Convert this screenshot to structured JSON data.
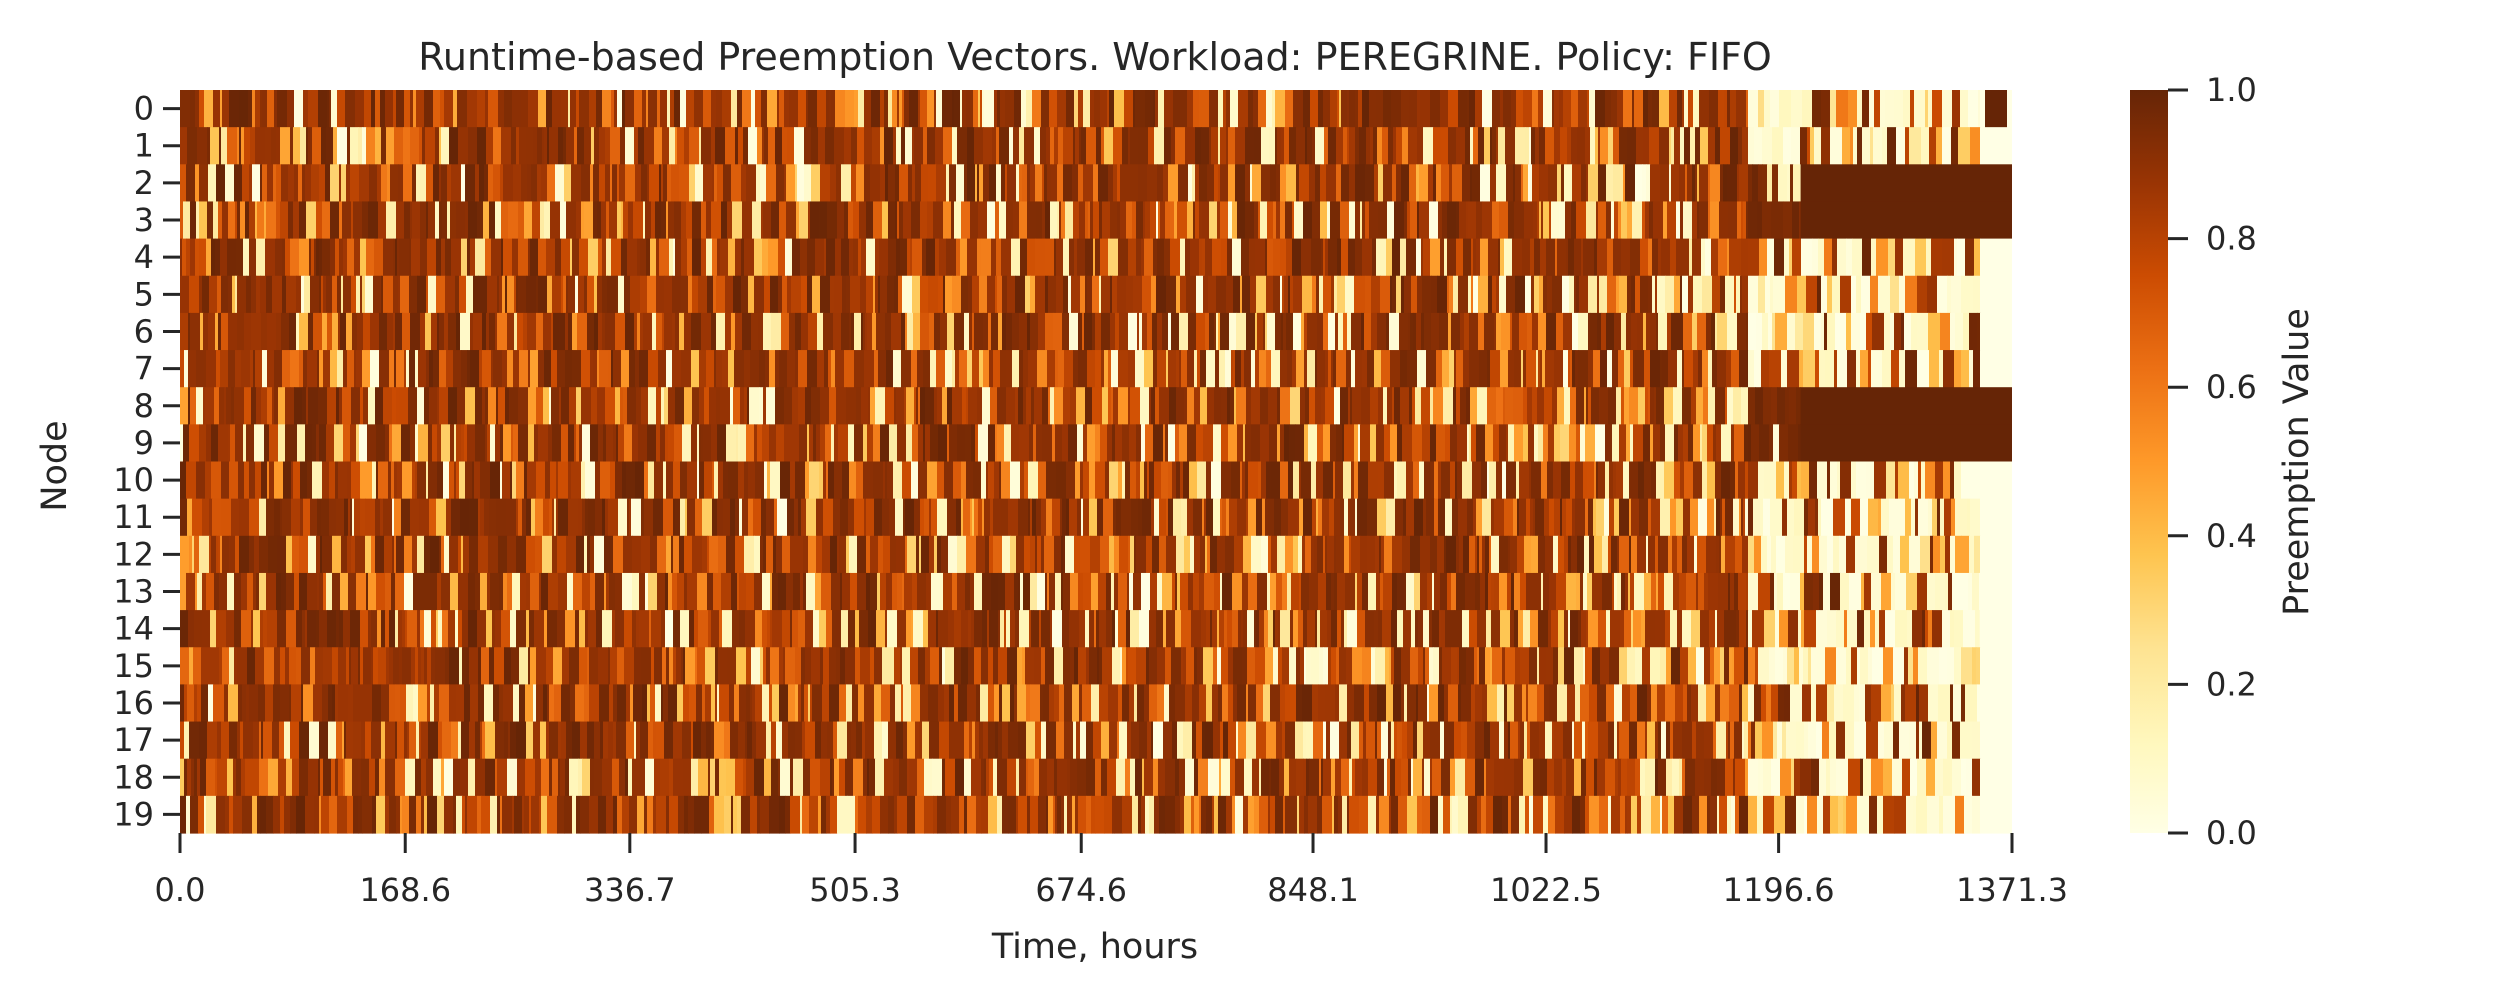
{
  "chart_data": {
    "type": "heatmap",
    "title": "Runtime-based Preemption Vectors. Workload: PEREGRINE. Policy: FIFO",
    "xlabel": "Time, hours",
    "ylabel": "Node",
    "x_tick_labels": [
      "0.0",
      "168.6",
      "336.7",
      "505.3",
      "674.6",
      "848.1",
      "1022.5",
      "1196.6",
      "1371.3"
    ],
    "xlim": [
      0.0,
      1371.3
    ],
    "y_tick_labels": [
      "0",
      "1",
      "2",
      "3",
      "4",
      "5",
      "6",
      "7",
      "8",
      "9",
      "10",
      "11",
      "12",
      "13",
      "14",
      "15",
      "16",
      "17",
      "18",
      "19"
    ],
    "colorbar": {
      "label": "Preemption Value",
      "range": [
        0.0,
        1.0
      ],
      "tick_labels": [
        "0.0",
        "0.2",
        "0.4",
        "0.6",
        "0.8",
        "1.0"
      ],
      "colormap": "YlOrBr",
      "color_stops": [
        "#ffffe5",
        "#fff7bc",
        "#fee391",
        "#fec44f",
        "#fe9929",
        "#ec7014",
        "#cc4c02",
        "#993404",
        "#662506"
      ]
    },
    "grid": false,
    "notes": "Dense heatmap of preemption values (0 to 1) per node over time; most cells vary between 0.3 and 1.0. Near the end (~1290-1371 h), nodes 2-3 and 8-9 are saturated at 1.0 while most other nodes drop to ~0.0."
  }
}
